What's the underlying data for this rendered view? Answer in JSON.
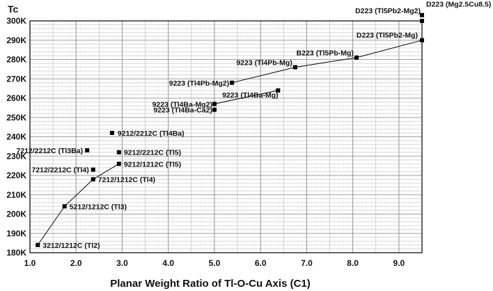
{
  "chart_data": {
    "type": "scatter",
    "title": "",
    "xlabel": "Planar Weight Ratio of Tl-O-Cu Axis (C1)",
    "ylabel": "Tc",
    "xlim": [
      1.0,
      9.5
    ],
    "ylim": [
      180,
      300
    ],
    "x_ticks": [
      "1.0",
      "2.0",
      "3.0",
      "4.0",
      "5.0",
      "6.0",
      "7.0",
      "8.0",
      "9.0"
    ],
    "y_ticks": [
      "180K",
      "190K",
      "200K",
      "210K",
      "220K",
      "230K",
      "240K",
      "250K",
      "260K",
      "270K",
      "280K",
      "290K",
      "300K"
    ],
    "grid": true,
    "points": [
      {
        "label": "3212/1212C (Tl2)",
        "x": 1.17,
        "y": 184
      },
      {
        "label": "5212/1212C (Tl3)",
        "x": 1.75,
        "y": 204
      },
      {
        "label": "7212/1212C (Tl4)",
        "x": 2.37,
        "y": 218
      },
      {
        "label": "9212/1212C (Tl5)",
        "x": 2.93,
        "y": 226
      },
      {
        "label": "7212/2212C (Tl4)",
        "x": 2.37,
        "y": 223
      },
      {
        "label": "9212/2212C (Tl5)",
        "x": 2.93,
        "y": 232
      },
      {
        "label": "7212/2212C (Tl3Ba)",
        "x": 2.24,
        "y": 233
      },
      {
        "label": "9212/2212C (Tl4Ba)",
        "x": 2.78,
        "y": 242
      },
      {
        "label": "9223 (Tl4Ba-Ca2)",
        "x": 5.0,
        "y": 254
      },
      {
        "label": "9223 (Tl4Ba-Mg2)",
        "x": 5.0,
        "y": 257
      },
      {
        "label": "9223 (Tl4Ba-Mg)",
        "x": 6.38,
        "y": 264
      },
      {
        "label": "9223 (Tl4Pb-Mg2)",
        "x": 5.38,
        "y": 268
      },
      {
        "label": "9223 (Tl4Pb-Mg)",
        "x": 6.75,
        "y": 276
      },
      {
        "label": "B223 (Tl5Pb-Mg)",
        "x": 8.08,
        "y": 281
      },
      {
        "label": "D223 (Tl5Pb2-Mg)",
        "x": 9.5,
        "y": 290
      },
      {
        "label": "D223 (Tl5Pb2-Mg2)",
        "x": 9.5,
        "y": 300
      },
      {
        "label": "D223 (Mg2.5Cu8.5)",
        "x": 9.5,
        "y": 303
      }
    ],
    "lines": [
      {
        "points": [
          0,
          1,
          2,
          3
        ]
      },
      {
        "points": [
          9,
          10
        ]
      },
      {
        "points": [
          11,
          12,
          13,
          14
        ]
      }
    ]
  }
}
